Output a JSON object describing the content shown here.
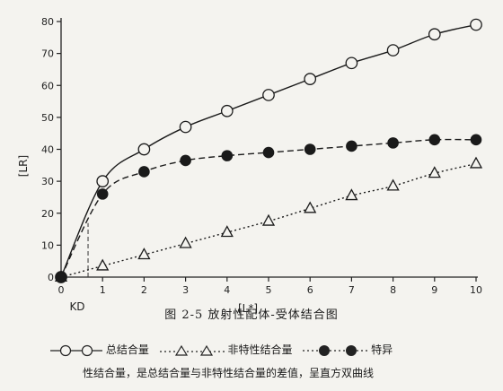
{
  "chart_data": {
    "type": "line",
    "title": "图 2-5   放射性配体-受体结合图",
    "xlabel": "[L*]",
    "ylabel": "[LR]",
    "xlim": [
      0,
      10
    ],
    "ylim": [
      0,
      80
    ],
    "xticks": [
      0,
      1,
      2,
      3,
      4,
      5,
      6,
      7,
      8,
      9,
      10
    ],
    "yticks": [
      0,
      10,
      20,
      30,
      40,
      50,
      60,
      70,
      80
    ],
    "kd_label": "KD",
    "kd_x": 0.65,
    "series": [
      {
        "name": "总结合量",
        "marker": "open-circle",
        "linestyle": "solid",
        "x": [
          0,
          1,
          2,
          3,
          4,
          5,
          6,
          7,
          8,
          9,
          10
        ],
        "y": [
          0,
          30,
          40,
          47,
          52,
          57,
          62,
          67,
          71,
          76,
          79
        ]
      },
      {
        "name": "非特性结合量",
        "marker": "open-triangle",
        "linestyle": "dotted",
        "x": [
          0,
          1,
          2,
          3,
          4,
          5,
          6,
          7,
          8,
          9,
          10
        ],
        "y": [
          0,
          3.5,
          7,
          10.5,
          14,
          17.5,
          21.5,
          25.5,
          28.5,
          32.5,
          35.5
        ]
      },
      {
        "name": "特异性结合量",
        "marker": "filled-circle",
        "linestyle": "dashed",
        "x": [
          0,
          1,
          2,
          3,
          4,
          5,
          6,
          7,
          8,
          9,
          10
        ],
        "y": [
          0,
          26,
          33,
          36.5,
          38,
          39,
          40,
          41,
          42,
          43,
          43
        ]
      }
    ]
  },
  "legend": {
    "total_label": "总结合量",
    "nonspecific_label": "非特性结合量",
    "specific_label": "特异",
    "note": "性结合量，是总结合量与非特性结合量的差值，呈直方双曲线"
  }
}
